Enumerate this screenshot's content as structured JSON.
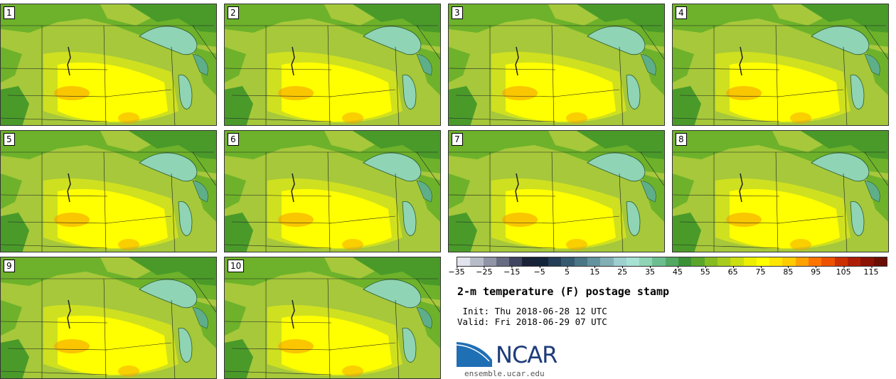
{
  "panels": [
    {
      "label": "1"
    },
    {
      "label": "2"
    },
    {
      "label": "3"
    },
    {
      "label": "4"
    },
    {
      "label": "5"
    },
    {
      "label": "6"
    },
    {
      "label": "7"
    },
    {
      "label": "8"
    },
    {
      "label": "9"
    },
    {
      "label": "10"
    }
  ],
  "colorbar": {
    "colors": [
      "#e1e4ec",
      "#b8bcc8",
      "#8f94a6",
      "#676c82",
      "#3f4560",
      "#1a2238",
      "#14243a",
      "#243e58",
      "#365a70",
      "#4b7686",
      "#63939e",
      "#80b0b5",
      "#9ecfcf",
      "#a5e2d4",
      "#8fd4b4",
      "#6dbe8e",
      "#52a862",
      "#3b9236",
      "#5aa62a",
      "#85bc22",
      "#a8cc1e",
      "#cade10",
      "#ecf000",
      "#ffff00",
      "#ffe600",
      "#ffcc00",
      "#ffa200",
      "#ff7400",
      "#ee5200",
      "#cc3000",
      "#ae1e06",
      "#8c1206",
      "#6a0e04"
    ],
    "ticks": [
      "−35",
      "−25",
      "−15",
      "−5",
      "5",
      "15",
      "25",
      "35",
      "45",
      "55",
      "65",
      "75",
      "85",
      "95",
      "105",
      "115"
    ]
  },
  "title": "2-m temperature (F) postage stamp",
  "init": " Init: Thu 2018-06-28 12 UTC",
  "valid": "Valid: Fri 2018-06-29 07 UTC",
  "logo": {
    "name": "NCAR",
    "accent": "#1d3c7a",
    "swoosh": "#1f6fb5"
  },
  "website": "ensemble.ucar.edu",
  "map_colors": {
    "green_dark": "#4a9a2a",
    "green": "#6db22a",
    "lime": "#a6c83a",
    "yellowgreen": "#cfe020",
    "yellow": "#ffff00",
    "orange": "#f5a000",
    "lake": "#8fd4b4",
    "lake_dark": "#5fae8a"
  }
}
